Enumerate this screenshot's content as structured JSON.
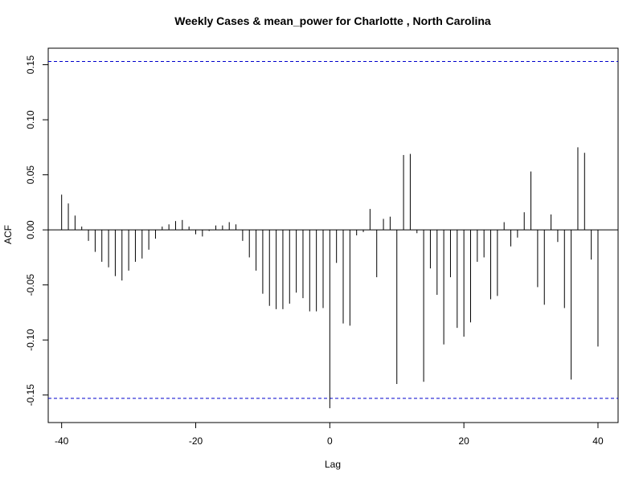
{
  "chart_data": {
    "type": "bar",
    "title": "Weekly Cases & mean_power for Charlotte , North Carolina",
    "xlabel": "Lag",
    "ylabel": "ACF",
    "xlim": [
      -42,
      43
    ],
    "ylim": [
      -0.175,
      0.165
    ],
    "x_ticks": [
      -40,
      -20,
      0,
      20,
      40
    ],
    "x_tick_labels": [
      "-40",
      "-20",
      "0",
      "20",
      "40"
    ],
    "y_ticks": [
      -0.15,
      -0.1,
      -0.05,
      0.0,
      0.05,
      0.1,
      0.15
    ],
    "y_tick_labels": [
      "-0.15",
      "-0.10",
      "-0.05",
      "0.00",
      "0.05",
      "0.10",
      "0.15"
    ],
    "confidence_bound": 0.153,
    "confidence_color": "#0000cc",
    "bar_color": "#000000",
    "grid": false,
    "lags": [
      -40,
      -39,
      -38,
      -37,
      -36,
      -35,
      -34,
      -33,
      -32,
      -31,
      -30,
      -29,
      -28,
      -27,
      -26,
      -25,
      -24,
      -23,
      -22,
      -21,
      -20,
      -19,
      -18,
      -17,
      -16,
      -15,
      -14,
      -13,
      -12,
      -11,
      -10,
      -9,
      -8,
      -7,
      -6,
      -5,
      -4,
      -3,
      -2,
      -1,
      0,
      1,
      2,
      3,
      4,
      5,
      6,
      7,
      8,
      9,
      10,
      11,
      12,
      13,
      14,
      15,
      16,
      17,
      18,
      19,
      20,
      21,
      22,
      23,
      24,
      25,
      26,
      27,
      28,
      29,
      30,
      31,
      32,
      33,
      34,
      35,
      36,
      37,
      38,
      39,
      40
    ],
    "values": [
      0.032,
      0.024,
      0.013,
      0.003,
      -0.01,
      -0.02,
      -0.029,
      -0.034,
      -0.042,
      -0.046,
      -0.037,
      -0.029,
      -0.026,
      -0.018,
      -0.008,
      0.003,
      0.005,
      0.008,
      0.009,
      0.003,
      -0.004,
      -0.006,
      -0.001,
      0.004,
      0.004,
      0.007,
      0.005,
      -0.01,
      -0.025,
      -0.037,
      -0.058,
      -0.069,
      -0.072,
      -0.072,
      -0.067,
      -0.057,
      -0.062,
      -0.074,
      -0.074,
      -0.071,
      -0.162,
      -0.03,
      -0.085,
      -0.087,
      -0.005,
      -0.002,
      0.019,
      -0.043,
      0.01,
      0.012,
      -0.14,
      0.068,
      0.069,
      -0.003,
      -0.138,
      -0.035,
      -0.059,
      -0.104,
      -0.043,
      -0.089,
      -0.097,
      -0.084,
      -0.029,
      -0.025,
      -0.063,
      -0.06,
      0.007,
      -0.015,
      -0.007,
      0.016,
      0.053,
      -0.052,
      -0.068,
      0.014,
      -0.011,
      -0.071,
      -0.136,
      0.075,
      0.07,
      -0.027,
      -0.106
    ]
  }
}
